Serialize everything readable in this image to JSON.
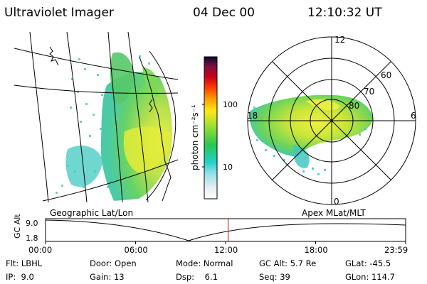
{
  "header": {
    "instrument": "Ultraviolet Imager",
    "date": "04 Dec 00",
    "time": "12:10:32 UT"
  },
  "colorbar": {
    "unit_label": "photon cm⁻²s⁻¹",
    "ticks": [
      "100",
      "10"
    ]
  },
  "polar_plot": {
    "mlt_labels": [
      "12",
      "18",
      "6",
      "0"
    ],
    "mlat_labels": [
      "60",
      "70",
      "80"
    ]
  },
  "map_label": "Geographic Lat/Lon",
  "polar_label": "Apex MLat/MLT",
  "altitude_strip": {
    "axis_label": "GC Alt",
    "y_ticks": [
      "9.0",
      "1.8"
    ],
    "time_ticks": [
      "00:00",
      "06:00",
      "12:00",
      "18:00",
      "23:59"
    ],
    "current_time_fraction": 0.507
  },
  "footer": {
    "row1": [
      "Flt: LBHL",
      "Door: Open",
      "Mode: Normal",
      "GC Alt: 5.7 Re",
      "GLat: -45.5"
    ],
    "row2": [
      "IP:  9.0",
      "Gain: 13",
      "Dsp:    6.1",
      "Seq: 39",
      "GLon: 114.7"
    ]
  },
  "colors": {
    "marker": "#cc0000",
    "grid": "#000000"
  }
}
